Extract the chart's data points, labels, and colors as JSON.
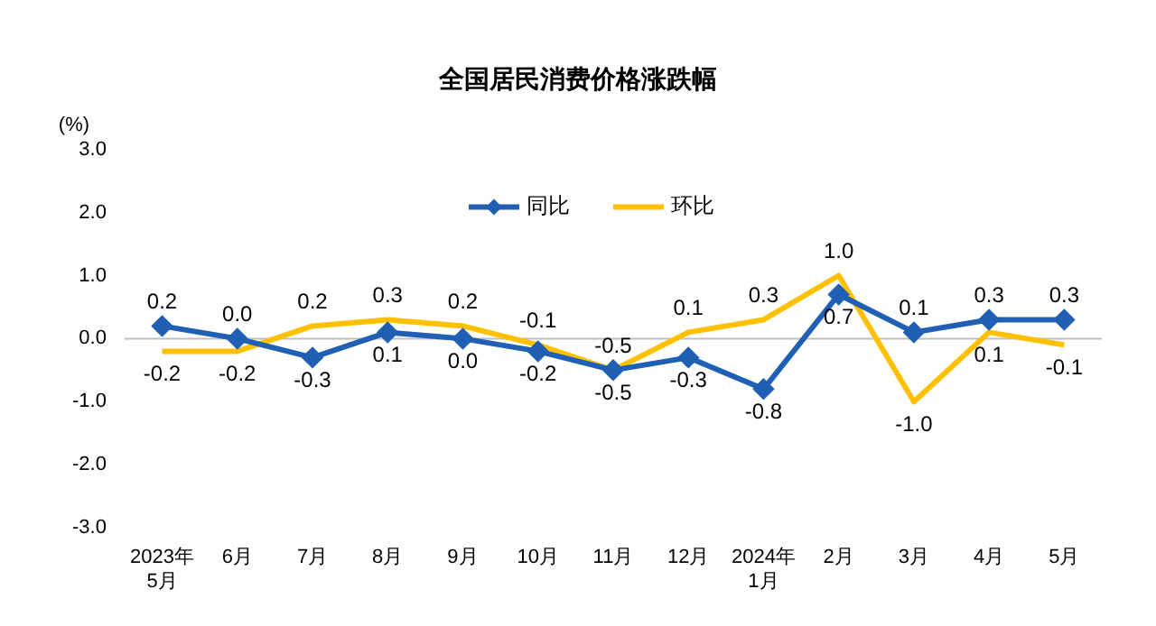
{
  "chart_data": {
    "type": "line",
    "title": "全国居民消费价格涨跌幅",
    "ylabel": "(%)",
    "categories": [
      "2023年\n5月",
      "6月",
      "7月",
      "8月",
      "9月",
      "10月",
      "11月",
      "12月",
      "2024年\n1月",
      "2月",
      "3月",
      "4月",
      "5月"
    ],
    "series": [
      {
        "name": "同比",
        "color": "#1f5fb4",
        "marker": "diamond",
        "values": [
          0.2,
          0.0,
          -0.3,
          0.1,
          0.0,
          -0.2,
          -0.5,
          -0.3,
          -0.8,
          0.7,
          0.1,
          0.3,
          0.3
        ],
        "value_labels": [
          "0.2",
          "0.0",
          "-0.3",
          "0.1",
          "0.0",
          "-0.2",
          "-0.5",
          "-0.3",
          "-0.8",
          "0.7",
          "0.1",
          "0.3",
          "0.3"
        ]
      },
      {
        "name": "环比",
        "color": "#ffc000",
        "marker": "none",
        "values": [
          -0.2,
          -0.2,
          0.2,
          0.3,
          0.2,
          -0.1,
          -0.5,
          0.1,
          0.3,
          1.0,
          -1.0,
          0.1,
          -0.1
        ],
        "value_labels": [
          "-0.2",
          "-0.2",
          "0.2",
          "0.3",
          "0.2",
          "-0.1",
          "-0.5",
          "0.1",
          "0.3",
          "1.0",
          "-1.0",
          "0.1",
          "-0.1"
        ]
      }
    ],
    "ylim": [
      -3,
      3
    ],
    "yticks": [
      {
        "value": -3,
        "label": "-3.0"
      },
      {
        "value": -2,
        "label": "-2.0"
      },
      {
        "value": -1,
        "label": "-1.0"
      },
      {
        "value": 0,
        "label": "0.0"
      },
      {
        "value": 1,
        "label": "1.0"
      },
      {
        "value": 2,
        "label": "2.0"
      },
      {
        "value": 3,
        "label": "3.0"
      }
    ],
    "ref_lines": [
      {
        "axis": "y",
        "value": 0,
        "color": "#bfbfbf"
      }
    ],
    "grid": false,
    "legend": "top",
    "line_style": "solid"
  }
}
